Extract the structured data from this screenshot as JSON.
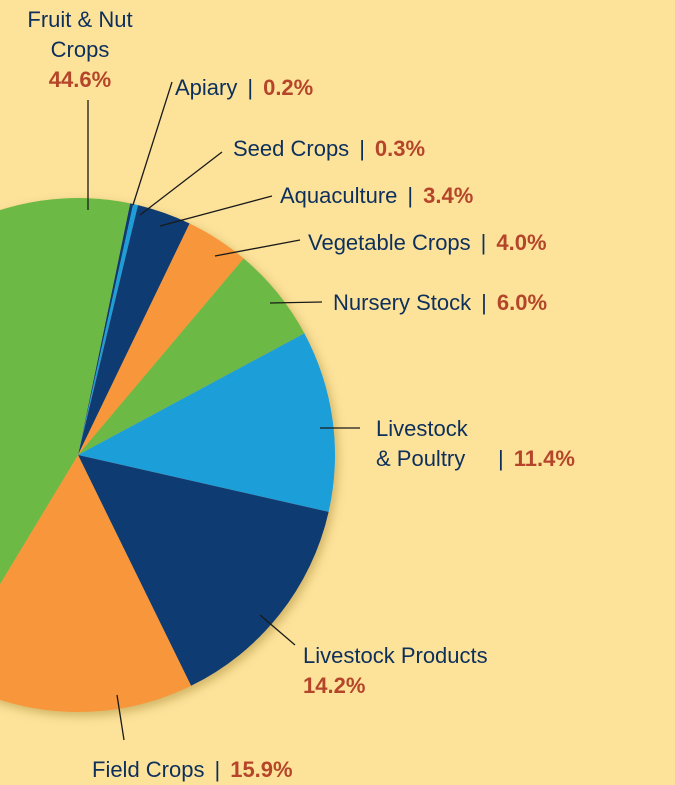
{
  "chart_data": {
    "type": "pie",
    "categories": [
      "Apiary",
      "Seed Crops",
      "Aquaculture",
      "Vegetable Crops",
      "Nursery Stock",
      "Livestock & Poultry",
      "Livestock Products",
      "Field Crops",
      "Fruit & Nut Crops"
    ],
    "values": [
      0.2,
      0.3,
      3.4,
      4.0,
      6.0,
      11.4,
      14.2,
      15.9,
      44.6
    ],
    "value_labels": [
      "0.2%",
      "0.3%",
      "3.4%",
      "4.0%",
      "6.0%",
      "11.4%",
      "14.2%",
      "15.9%",
      "44.6%"
    ],
    "colors": [
      "#0b3a72",
      "#1a9ed9",
      "#0b3a72",
      "#f7963a",
      "#6db944",
      "#1a9ed9",
      "#0b3a72",
      "#f7963a",
      "#6db944"
    ],
    "separator": "|"
  }
}
